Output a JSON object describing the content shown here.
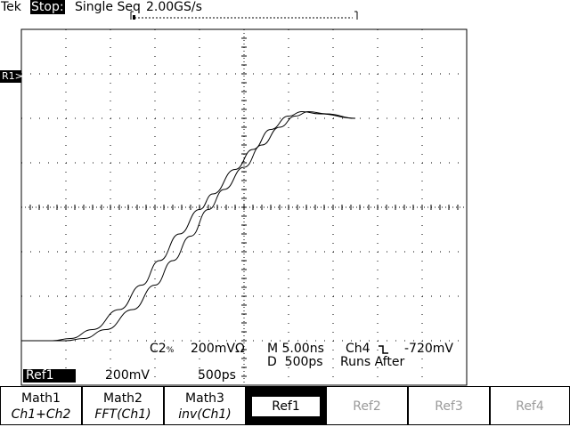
{
  "header": {
    "brand": "Tek",
    "state": "Stop:",
    "mode": "Single Seq",
    "sample_rate": "2.00GS/s"
  },
  "markers": {
    "ref1": "R1"
  },
  "readouts": {
    "ch2": "C2",
    "ch2_scale": "200mV",
    "ohm": "Ω",
    "timebase": "M 5.00ns",
    "trigger_source": "Ch4",
    "trigger_level": "-720mV",
    "delay": "D  500ps",
    "delay_mode": "Runs After",
    "ref_name": "Ref1",
    "ref_volts": "200mV",
    "ref_time": "500ps"
  },
  "softkeys": [
    {
      "line1": "Math1",
      "line2": "Ch1+Ch2"
    },
    {
      "line1": "Math2",
      "line2": "FFT(Ch1)"
    },
    {
      "line1": "Math3",
      "line2": "inv(Ch1)"
    },
    {
      "line1": "Ref1",
      "line2": ""
    },
    {
      "line1": "Ref2",
      "line2": ""
    },
    {
      "line1": "Ref3",
      "line2": ""
    },
    {
      "line1": "Ref4",
      "line2": ""
    }
  ],
  "chart_data": {
    "type": "line",
    "divisions": {
      "x": 10,
      "y": 8
    },
    "series": [
      {
        "values_div": [
          [
            -10,
            -6
          ],
          [
            -8.6,
            -6
          ],
          [
            -7.8,
            -5.9
          ],
          [
            -6.8,
            -5.5
          ],
          [
            -5.6,
            -4.6
          ],
          [
            -4.6,
            -3.5
          ],
          [
            -3.8,
            -2.4
          ],
          [
            -2.9,
            -1.2
          ],
          [
            -2,
            -0.1
          ],
          [
            -1.4,
            0.6
          ],
          [
            -0.4,
            1.7
          ],
          [
            0.4,
            2.6
          ],
          [
            1.2,
            3.5
          ],
          [
            2,
            4.1
          ],
          [
            2.6,
            4.3
          ],
          [
            3.4,
            4.2
          ],
          [
            5,
            4.0
          ]
        ]
      },
      {
        "values_div": [
          [
            -10,
            -6
          ],
          [
            -8,
            -6
          ],
          [
            -7.2,
            -5.9
          ],
          [
            -6.2,
            -5.5
          ],
          [
            -5,
            -4.6
          ],
          [
            -4,
            -3.5
          ],
          [
            -3.2,
            -2.4
          ],
          [
            -2.4,
            -1.3
          ],
          [
            -1.6,
            -0.1
          ],
          [
            -0.9,
            0.8
          ],
          [
            0,
            1.8
          ],
          [
            0.8,
            2.8
          ],
          [
            1.6,
            3.6
          ],
          [
            2.3,
            4.1
          ],
          [
            2.9,
            4.3
          ],
          [
            3.7,
            4.2
          ],
          [
            5,
            4.0
          ]
        ]
      }
    ]
  }
}
